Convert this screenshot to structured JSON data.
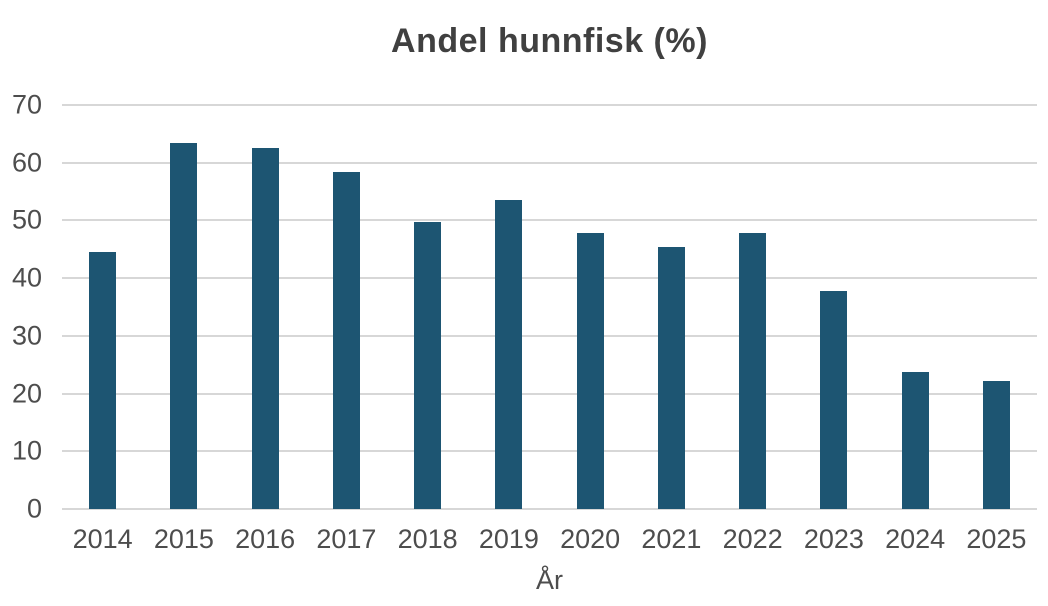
{
  "chart_data": {
    "type": "bar",
    "title": "Andel hunnfisk (%)",
    "xlabel": "År",
    "ylabel": "",
    "categories": [
      "2014",
      "2015",
      "2016",
      "2017",
      "2018",
      "2019",
      "2020",
      "2021",
      "2022",
      "2023",
      "2024",
      "2025"
    ],
    "values": [
      44.5,
      63.4,
      62.5,
      58.4,
      49.7,
      53.5,
      47.8,
      45.4,
      47.8,
      37.8,
      23.8,
      22.2
    ],
    "ylim": [
      0,
      70
    ],
    "y_ticks": [
      0,
      10,
      20,
      30,
      40,
      50,
      60,
      70
    ],
    "grid": true,
    "legend_position": "none",
    "colors": {
      "bar": "#1d5572",
      "gridline": "#d7d7d7",
      "tick_text": "#4d4d4d",
      "title_text": "#404040",
      "background": "#ffffff"
    }
  }
}
